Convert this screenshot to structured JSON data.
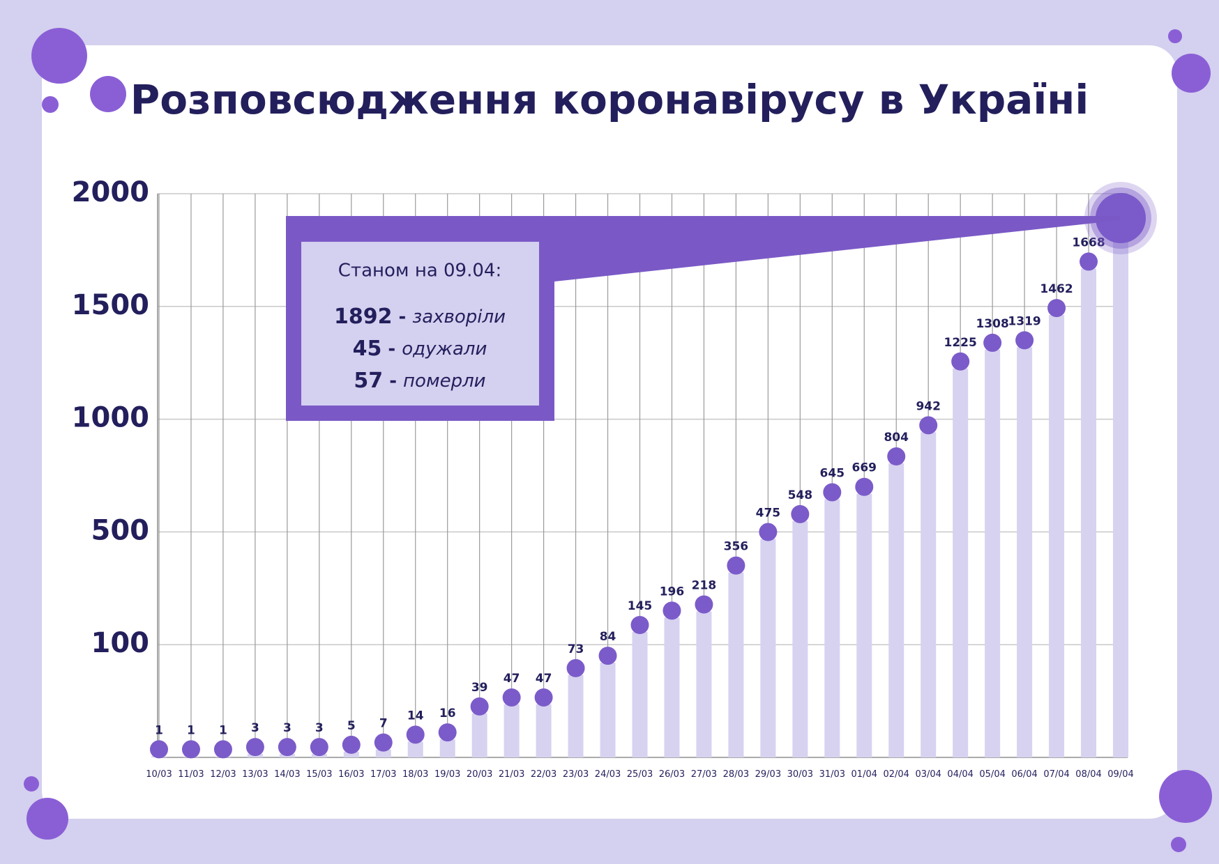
{
  "chart_data": {
    "type": "lollipop",
    "title": "Розповсюдження коронавірусу в Україні",
    "categories": [
      "10/03",
      "11/03",
      "12/03",
      "13/03",
      "14/03",
      "15/03",
      "16/03",
      "17/03",
      "18/03",
      "19/03",
      "20/03",
      "21/03",
      "22/03",
      "23/03",
      "24/03",
      "25/03",
      "26/03",
      "27/03",
      "28/03",
      "29/03",
      "30/03",
      "31/03",
      "01/04",
      "02/04",
      "03/04",
      "04/04",
      "05/04",
      "06/04",
      "07/04",
      "08/04",
      "09/04"
    ],
    "values": [
      1,
      1,
      1,
      3,
      3,
      3,
      5,
      7,
      14,
      16,
      39,
      47,
      47,
      73,
      84,
      145,
      196,
      218,
      356,
      475,
      548,
      645,
      669,
      804,
      942,
      1225,
      1308,
      1319,
      1462,
      1668,
      1892
    ],
    "bar_color": "#d6d2f0",
    "dot_color": "#7b5bc9",
    "ylim": [
      0,
      2000
    ],
    "yticks": [
      100,
      500,
      1000,
      1500,
      2000
    ],
    "scale": "piecewise",
    "grid": true,
    "highlight_last": true,
    "callout": {
      "title": "Станом на 09.04:",
      "items": [
        {
          "value": 1892,
          "label": "захворіли"
        },
        {
          "value": 45,
          "label": "одужали"
        },
        {
          "value": 57,
          "label": "померли"
        }
      ]
    }
  }
}
